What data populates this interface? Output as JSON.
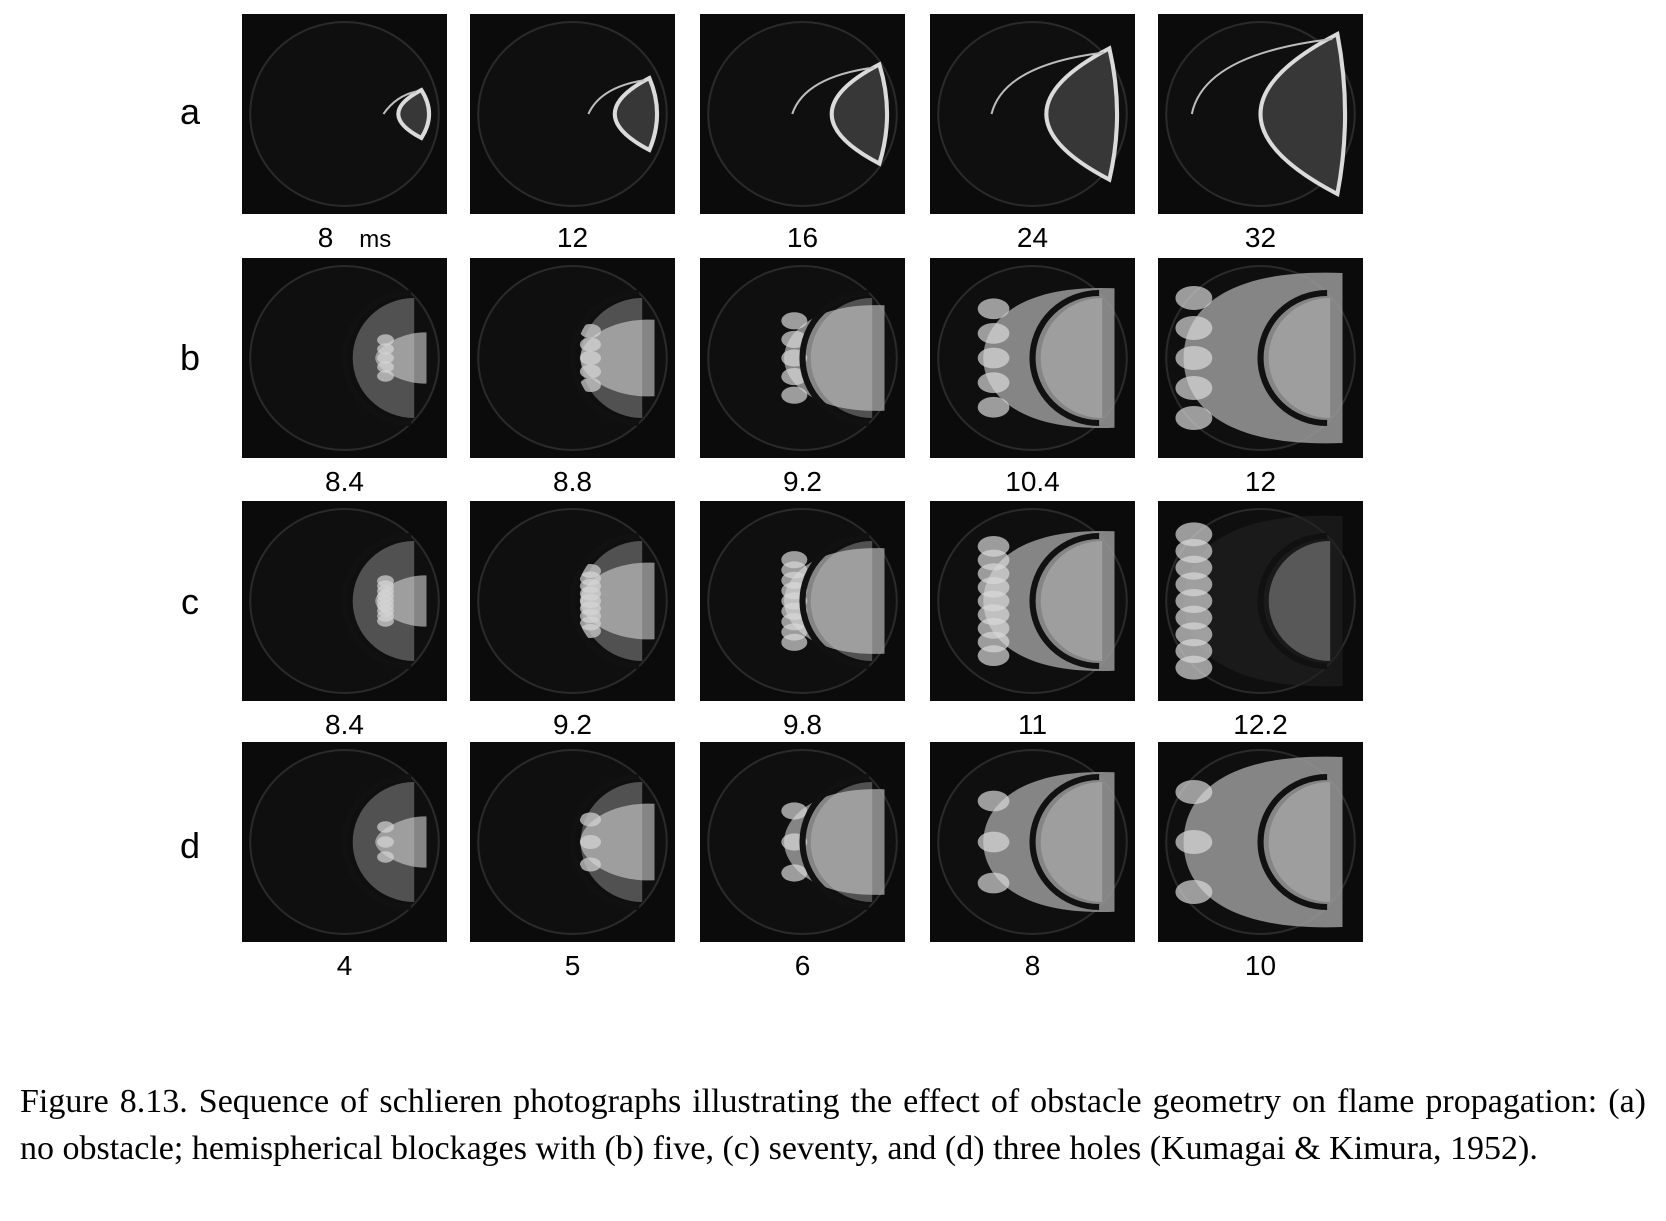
{
  "figure": {
    "unit": "ms",
    "rows": [
      {
        "label": "a",
        "times": [
          "8",
          "12",
          "16",
          "24",
          "32"
        ]
      },
      {
        "label": "b",
        "times": [
          "8.4",
          "8.8",
          "9.2",
          "10.4",
          "12"
        ]
      },
      {
        "label": "c",
        "times": [
          "8.4",
          "9.2",
          "9.8",
          "11",
          "12.2"
        ]
      },
      {
        "label": "d",
        "times": [
          "4",
          "5",
          "6",
          "8",
          "10"
        ]
      }
    ]
  },
  "caption": {
    "text": "Figure 8.13. Sequence of schlieren photographs illustrating the effect of obstacle geometry on flame propagation: (a) no obstacle; hemispherical blockages with (b) five, (c) seventy, and (d) three holes (Kumagai & Kimura, 1952)."
  }
}
